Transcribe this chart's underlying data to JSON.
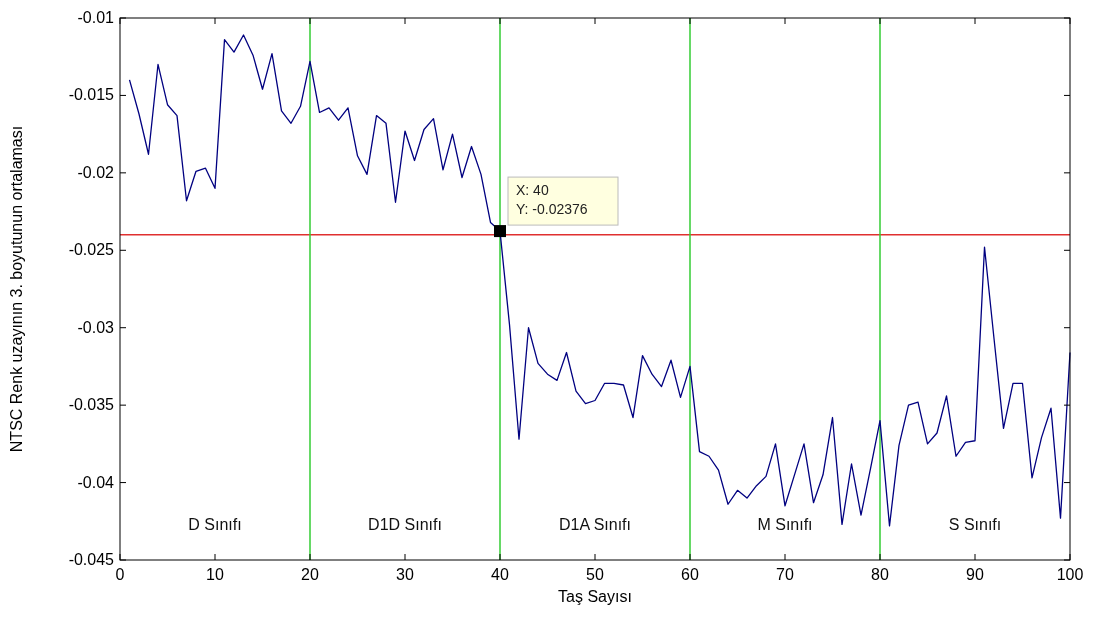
{
  "chart_data": {
    "type": "line",
    "xlabel": "Taş Sayısı",
    "ylabel": "NTSC Renk uzayının 3. boyutunun ortalaması",
    "xlim": [
      0,
      100
    ],
    "ylim": [
      -0.045,
      -0.01
    ],
    "xticks": [
      0,
      10,
      20,
      30,
      40,
      50,
      60,
      70,
      80,
      90,
      100
    ],
    "yticks": [
      -0.045,
      -0.04,
      -0.035,
      -0.03,
      -0.025,
      -0.02,
      -0.015,
      -0.01
    ],
    "grid": false,
    "marker": "none",
    "line_style": "solid",
    "series": [
      {
        "color": "#000080",
        "x": [
          1,
          2,
          3,
          4,
          5,
          6,
          7,
          8,
          9,
          10,
          11,
          12,
          13,
          14,
          15,
          16,
          17,
          18,
          19,
          20,
          21,
          22,
          23,
          24,
          25,
          26,
          27,
          28,
          29,
          30,
          31,
          32,
          33,
          34,
          35,
          36,
          37,
          38,
          39,
          40,
          41,
          42,
          43,
          44,
          45,
          46,
          47,
          48,
          49,
          50,
          51,
          52,
          53,
          54,
          55,
          56,
          57,
          58,
          59,
          60,
          61,
          62,
          63,
          64,
          65,
          66,
          67,
          68,
          69,
          70,
          71,
          72,
          73,
          74,
          75,
          76,
          77,
          78,
          79,
          80,
          81,
          82,
          83,
          84,
          85,
          86,
          87,
          88,
          89,
          90,
          91,
          92,
          93,
          94,
          95,
          96,
          97,
          98,
          99,
          100
        ],
        "values": [
          -0.014,
          -0.0162,
          -0.0188,
          -0.013,
          -0.0156,
          -0.0163,
          -0.0218,
          -0.0199,
          -0.0197,
          -0.021,
          -0.0114,
          -0.0122,
          -0.0111,
          -0.0124,
          -0.0146,
          -0.0123,
          -0.016,
          -0.0168,
          -0.0157,
          -0.0128,
          -0.0161,
          -0.0158,
          -0.0166,
          -0.0158,
          -0.0189,
          -0.0201,
          -0.0163,
          -0.0168,
          -0.0219,
          -0.0173,
          -0.0192,
          -0.0172,
          -0.0165,
          -0.0198,
          -0.0175,
          -0.0203,
          -0.0183,
          -0.0201,
          -0.0232,
          -0.02376,
          -0.0298,
          -0.0372,
          -0.03,
          -0.0323,
          -0.033,
          -0.0334,
          -0.0316,
          -0.0341,
          -0.0349,
          -0.0347,
          -0.0336,
          -0.0336,
          -0.0337,
          -0.0358,
          -0.0318,
          -0.033,
          -0.0338,
          -0.0321,
          -0.0345,
          -0.0325,
          -0.038,
          -0.0383,
          -0.0392,
          -0.0414,
          -0.0405,
          -0.041,
          -0.0402,
          -0.0396,
          -0.0375,
          -0.0415,
          -0.0395,
          -0.0375,
          -0.0413,
          -0.0395,
          -0.0358,
          -0.0427,
          -0.0388,
          -0.0421,
          -0.0391,
          -0.036,
          -0.0428,
          -0.0376,
          -0.035,
          -0.0348,
          -0.0375,
          -0.0368,
          -0.0344,
          -0.0383,
          -0.0374,
          -0.0373,
          -0.0248,
          -0.0307,
          -0.0365,
          -0.0336,
          -0.0336,
          -0.0397,
          -0.0371,
          -0.0352,
          -0.0423,
          -0.0316
        ]
      }
    ],
    "ref_lines": [
      {
        "axis": "y",
        "value": -0.024,
        "color": "#e03030"
      },
      {
        "axis": "x",
        "value": 20,
        "color": "#33cc33"
      },
      {
        "axis": "x",
        "value": 40,
        "color": "#33cc33"
      },
      {
        "axis": "x",
        "value": 60,
        "color": "#33cc33"
      },
      {
        "axis": "x",
        "value": 80,
        "color": "#33cc33"
      }
    ],
    "annotations": [
      "D Sınıfı",
      "D1D Sınıfı",
      "D1A Sınıfı",
      "M Sınıfı",
      "S Sınıfı",
      {
        "text": "X: 40\nY: -0.02376",
        "x": 40,
        "y": -0.02376
      }
    ]
  }
}
